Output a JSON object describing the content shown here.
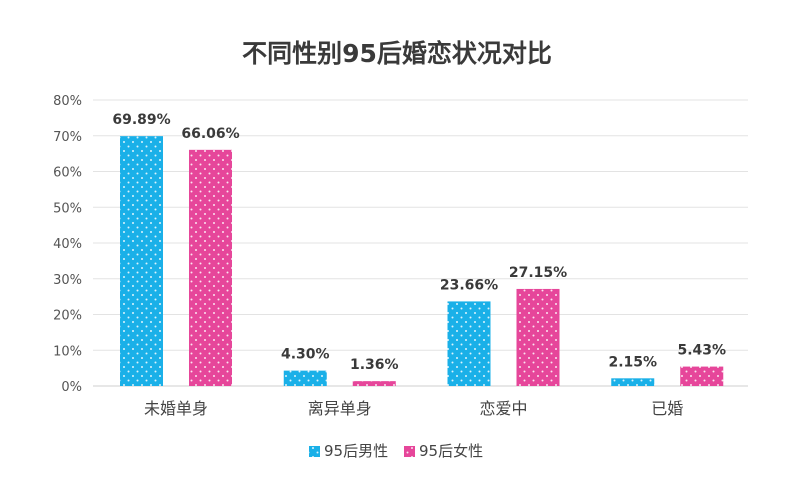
{
  "chart_data": {
    "type": "bar",
    "title": "不同性别95后婚恋状况对比",
    "categories": [
      "未婚单身",
      "离异单身",
      "恋爱中",
      "已婚"
    ],
    "series": [
      {
        "name": "95后男性",
        "values": [
          69.89,
          4.3,
          23.66,
          2.15
        ],
        "labels": [
          "69.89%",
          "4.30%",
          "23.66%",
          "2.15%"
        ],
        "color": "#1ab0e8"
      },
      {
        "name": "95后女性",
        "values": [
          66.06,
          1.36,
          27.15,
          5.43
        ],
        "labels": [
          "66.06%",
          "1.36%",
          "27.15%",
          "5.43%"
        ],
        "color": "#e6469a"
      }
    ],
    "yticks": [
      "0%",
      "10%",
      "20%",
      "30%",
      "40%",
      "50%",
      "60%",
      "70%",
      "80%"
    ],
    "ylim": [
      0,
      80
    ],
    "grid": true,
    "legend": "bottom-center",
    "pattern": "white-dots"
  }
}
